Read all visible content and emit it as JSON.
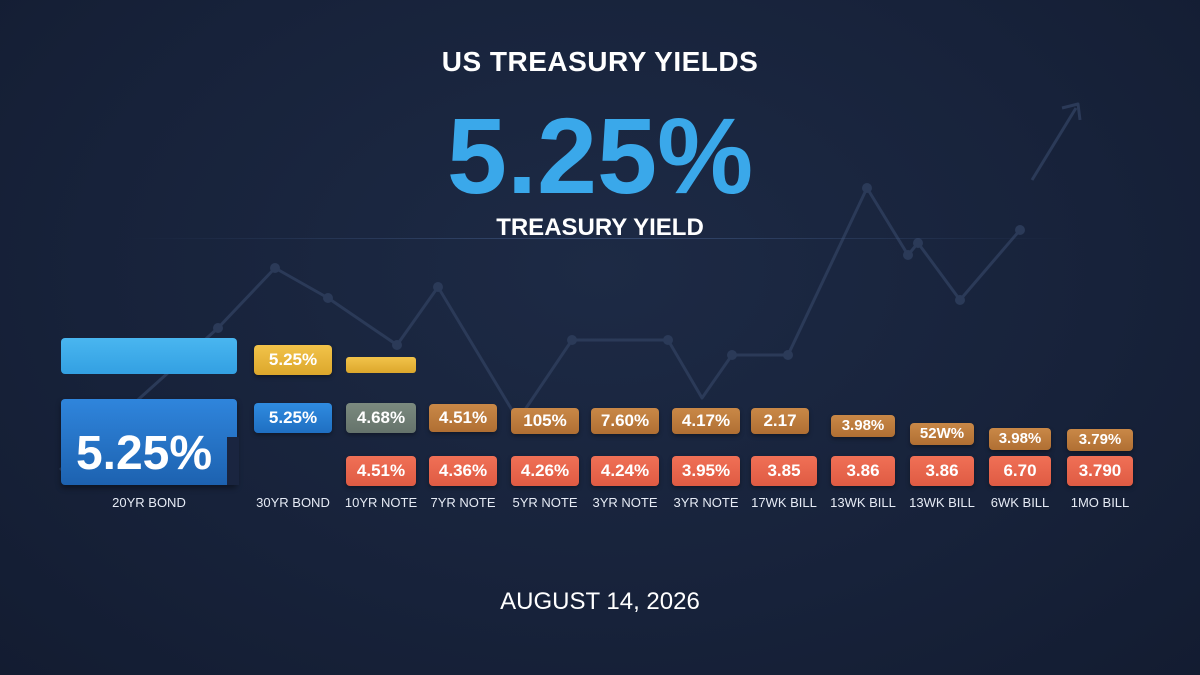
{
  "header": {
    "title": "US TREASURY YIELDS",
    "hero_value": "5.25%",
    "subtitle": "TREASURY YIELD"
  },
  "date": "AUGUST 14, 2026",
  "colors": {
    "background": "#17223a",
    "hero": "#3aa8ea",
    "blue": "#2f85dc",
    "yellow": "#f2c34a",
    "gray": "#7b8a7f",
    "brown": "#c98847",
    "red": "#f07056"
  },
  "instruments": [
    {
      "label": "20YR BOND",
      "main_value": "5.25%"
    },
    {
      "label": "30YR BOND",
      "top": "5.25%",
      "mid": "5.25%"
    },
    {
      "label": "10YR NOTE",
      "mid": "4.68%",
      "bottom": "4.51%"
    },
    {
      "label": "7YR NOTE",
      "mid": "4.51%",
      "bottom": "4.36%"
    },
    {
      "label": "5YR NOTE",
      "mid": "105%",
      "bottom": "4.26%"
    },
    {
      "label": "3YR NOTE",
      "mid": "7.60%",
      "bottom": "4.24%"
    },
    {
      "label": "3YR NOTE",
      "mid": "4.17%",
      "bottom": "3.95%"
    },
    {
      "label": "17WK BILL",
      "mid": "2.17",
      "bottom": "3.85"
    },
    {
      "label": "13WK BILL",
      "mid": "3.98%",
      "bottom": "3.86"
    },
    {
      "label": "13WK BILL",
      "mid": "52W%",
      "bottom": "3.86"
    },
    {
      "label": "6WK BILL",
      "mid": "3.98%",
      "bottom": "6.70"
    },
    {
      "label": "1MO BILL",
      "mid": "3.79%",
      "bottom": "3.790"
    }
  ]
}
